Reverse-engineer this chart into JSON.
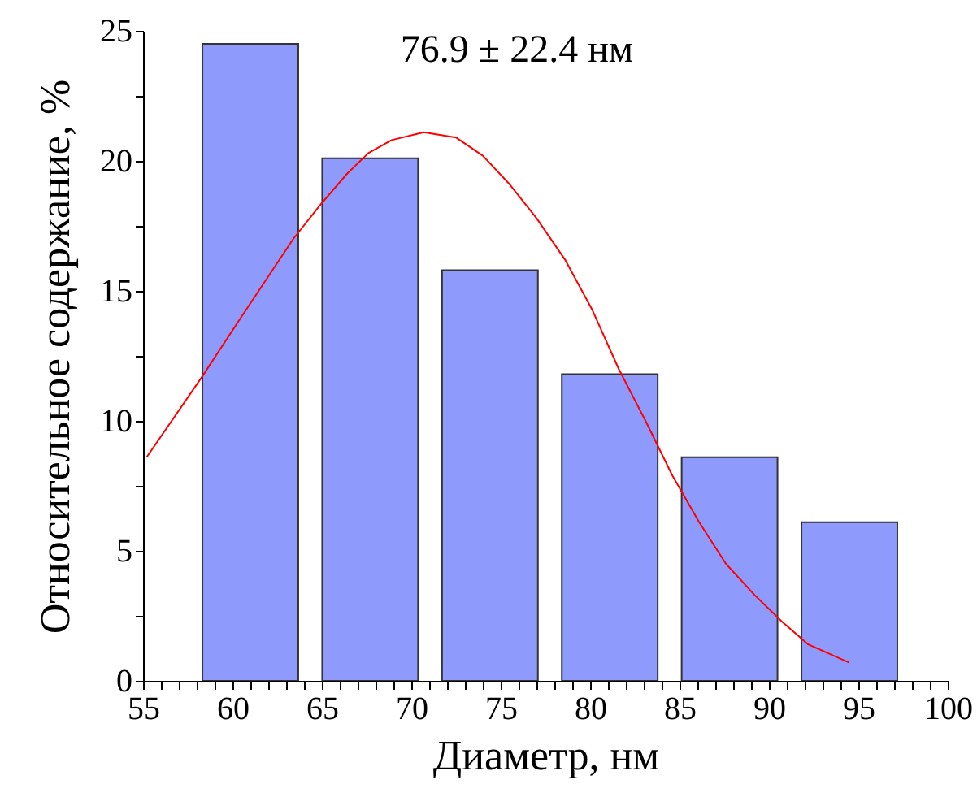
{
  "chart_data": {
    "type": "bar",
    "xlabel": "Диаметр, нм",
    "ylabel": "Относительное содержание, %",
    "annotations": [
      "76.9 ± 22.4 нм"
    ],
    "xlim": [
      55,
      100
    ],
    "ylim": [
      0,
      25
    ],
    "xticks": [
      55,
      {
        "value": 56,
        "label": null
      },
      {
        "value": 57,
        "label": null
      },
      {
        "value": 58,
        "label": null
      },
      {
        "value": 59,
        "label": null
      },
      60,
      {
        "value": 61,
        "label": null
      },
      {
        "value": 62,
        "label": null
      },
      {
        "value": 63,
        "label": null
      },
      {
        "value": 64,
        "label": null
      },
      65,
      {
        "value": 66,
        "label": null
      },
      {
        "value": 67,
        "label": null
      },
      {
        "value": 68,
        "label": null
      },
      {
        "value": 69,
        "label": null
      },
      70,
      {
        "value": 71,
        "label": null
      },
      {
        "value": 72,
        "label": null
      },
      {
        "value": 73,
        "label": null
      },
      {
        "value": 74,
        "label": null
      },
      75,
      {
        "value": 76,
        "label": null
      },
      {
        "value": 77,
        "label": null
      },
      {
        "value": 78,
        "label": null
      },
      {
        "value": 79,
        "label": null
      },
      80,
      {
        "value": 81,
        "label": null
      },
      {
        "value": 82,
        "label": null
      },
      {
        "value": 83,
        "label": null
      },
      {
        "value": 84,
        "label": null
      },
      85,
      {
        "value": 86,
        "label": null
      },
      {
        "value": 87,
        "label": null
      },
      {
        "value": 88,
        "label": null
      },
      {
        "value": 89,
        "label": null
      },
      90,
      {
        "value": 91,
        "label": null
      },
      {
        "value": 92,
        "label": null
      },
      {
        "value": 93,
        "label": null
      },
      {
        "value": 94,
        "label": null
      },
      95,
      {
        "value": 96,
        "label": null
      },
      {
        "value": 97,
        "label": null
      },
      {
        "value": 98,
        "label": null
      },
      {
        "value": 99,
        "label": null
      },
      100
    ],
    "yticks": [
      0,
      {
        "value": 2.5,
        "label": null
      },
      5,
      {
        "value": 7.5,
        "label": null
      },
      10,
      {
        "value": 12.5,
        "label": null
      },
      15,
      {
        "value": 17.5,
        "label": null
      },
      20,
      {
        "value": 22.5,
        "label": null
      },
      25
    ],
    "grid": false,
    "series": [
      {
        "color": "#8f9bfc",
        "x": [
          61.0,
          67.7,
          74.4,
          81.1,
          87.8,
          94.5
        ],
        "values": [
          24.5,
          20.1,
          15.8,
          11.8,
          8.6,
          6.1
        ]
      },
      {
        "type": "line",
        "color": "#ff0000",
        "x": [
          55.2,
          58.3,
          60.4,
          63.4,
          64.9,
          66.4,
          67.6,
          68.9,
          70.7,
          72.5,
          74.0,
          75.5,
          77.0,
          78.6,
          80.1,
          81.6,
          83.1,
          84.6,
          86.1,
          87.6,
          89.2,
          90.7,
          92.2,
          94.5
        ],
        "values": [
          8.6,
          11.7,
          13.9,
          17.0,
          18.3,
          19.5,
          20.3,
          20.8,
          21.1,
          20.9,
          20.2,
          19.1,
          17.8,
          16.2,
          14.3,
          12.0,
          10.0,
          7.9,
          6.1,
          4.5,
          3.3,
          2.3,
          1.4,
          0.7
        ]
      }
    ]
  }
}
